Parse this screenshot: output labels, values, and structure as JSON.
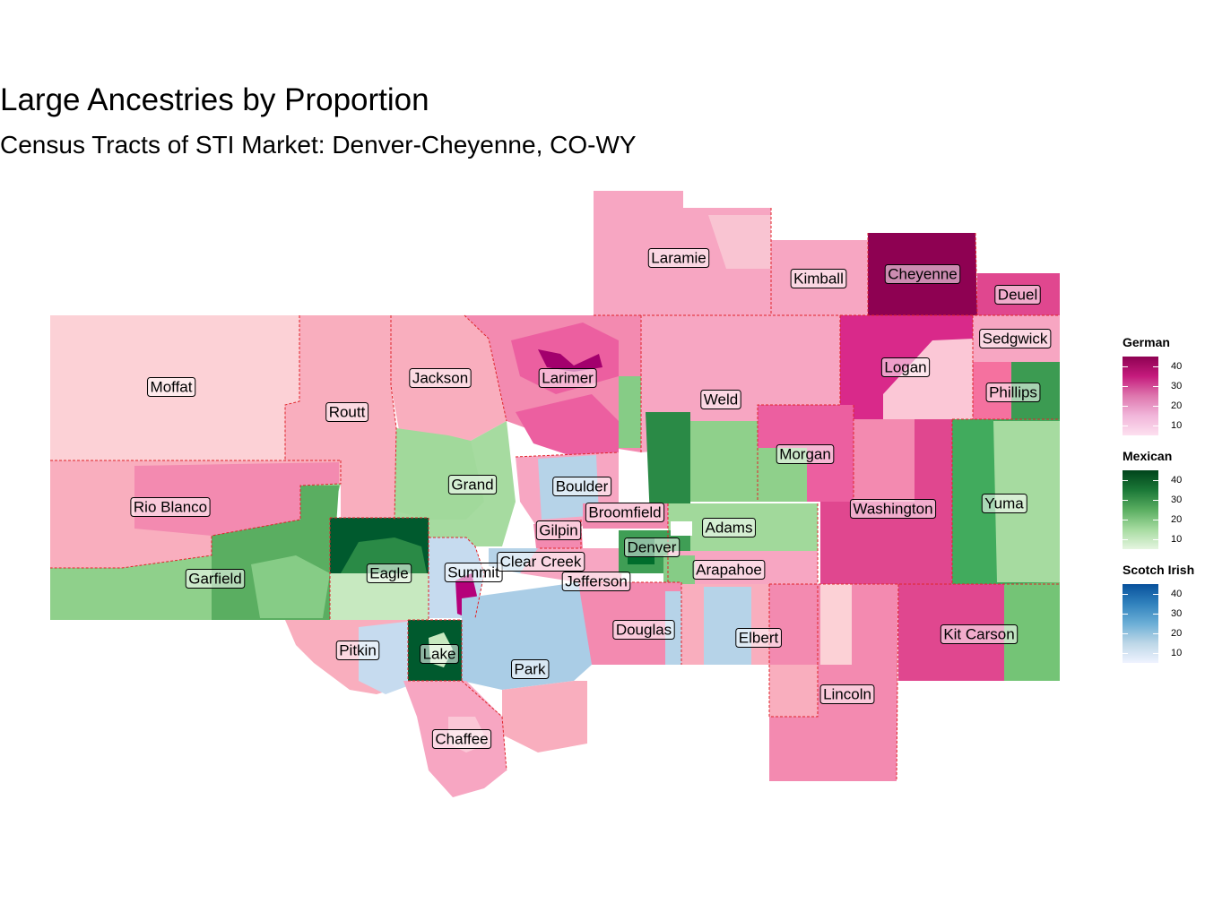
{
  "title": "Large Ancestries by Proportion",
  "subtitle": "Census Tracts of STI Market: Denver-Cheyenne, CO-WY",
  "colors": {
    "background": "#ffffff",
    "county_border": "#e0242a",
    "label_border": "#000000"
  },
  "legends": [
    {
      "name": "German",
      "ticks": [
        "40",
        "30",
        "20",
        "10"
      ],
      "range": [
        5,
        45
      ],
      "gradient": [
        "#8e0152",
        "#c51b7d",
        "#de77ae",
        "#f1b6da",
        "#fde0ef"
      ]
    },
    {
      "name": "Mexican",
      "ticks": [
        "40",
        "30",
        "20",
        "10"
      ],
      "range": [
        5,
        45
      ],
      "gradient": [
        "#00441b",
        "#1b7837",
        "#5aae61",
        "#a6dba0",
        "#e5f5e0"
      ]
    },
    {
      "name": "Scotch Irish",
      "ticks": [
        "40",
        "30",
        "20",
        "10"
      ],
      "range": [
        5,
        45
      ],
      "gradient": [
        "#08519c",
        "#3182bd",
        "#6baed6",
        "#bdd7e7",
        "#eff3ff"
      ]
    }
  ],
  "county_labels": {
    "laramie": "Laramie",
    "kimball": "Kimball",
    "cheyenne": "Cheyenne",
    "deuel": "Deuel",
    "sedgwick": "Sedgwick",
    "logan": "Logan",
    "phillips": "Phillips",
    "moffat": "Moffat",
    "routt": "Routt",
    "jackson": "Jackson",
    "larimer": "Larimer",
    "weld": "Weld",
    "morgan": "Morgan",
    "grand": "Grand",
    "boulder": "Boulder",
    "broomfield": "Broomfield",
    "gilpin": "Gilpin",
    "adams": "Adams",
    "washington": "Washington",
    "yuma": "Yuma",
    "rio_blanco": "Rio Blanco",
    "garfield": "Garfield",
    "eagle": "Eagle",
    "summit": "Summit",
    "clear_creek": "Clear Creek",
    "denver": "Denver",
    "arapahoe": "Arapahoe",
    "jefferson": "Jefferson",
    "douglas": "Douglas",
    "elbert": "Elbert",
    "kit_carson": "Kit Carson",
    "pitkin": "Pitkin",
    "lake": "Lake",
    "park": "Park",
    "lincoln": "Lincoln",
    "chaffee": "Chaffee"
  }
}
